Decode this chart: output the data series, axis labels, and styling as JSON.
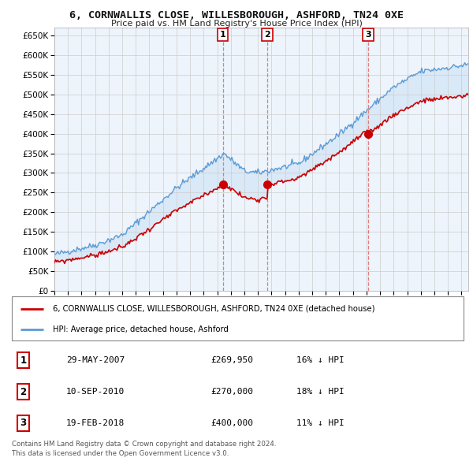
{
  "title": "6, CORNWALLIS CLOSE, WILLESBOROUGH, ASHFORD, TN24 0XE",
  "subtitle": "Price paid vs. HM Land Registry's House Price Index (HPI)",
  "xlim": [
    1995.0,
    2025.5
  ],
  "ylim": [
    0,
    670000
  ],
  "yticks": [
    0,
    50000,
    100000,
    150000,
    200000,
    250000,
    300000,
    350000,
    400000,
    450000,
    500000,
    550000,
    600000,
    650000
  ],
  "ytick_labels": [
    "£0",
    "£50K",
    "£100K",
    "£150K",
    "£200K",
    "£250K",
    "£300K",
    "£350K",
    "£400K",
    "£450K",
    "£500K",
    "£550K",
    "£600K",
    "£650K"
  ],
  "background_color": "#ffffff",
  "plot_background": "#eef4fb",
  "grid_color": "#cccccc",
  "hpi_color": "#5b9bd5",
  "price_color": "#cc0000",
  "sale_vline_color": "#e07070",
  "sales": [
    {
      "label": "1",
      "date_num": 2007.41,
      "price": 269950
    },
    {
      "label": "2",
      "date_num": 2010.69,
      "price": 270000
    },
    {
      "label": "3",
      "date_num": 2018.12,
      "price": 400000
    }
  ],
  "legend_entries": [
    "6, CORNWALLIS CLOSE, WILLESBOROUGH, ASHFORD, TN24 0XE (detached house)",
    "HPI: Average price, detached house, Ashford"
  ],
  "table_data": [
    {
      "num": "1",
      "date": "29-MAY-2007",
      "price": "£269,950",
      "hpi": "16% ↓ HPI"
    },
    {
      "num": "2",
      "date": "10-SEP-2010",
      "price": "£270,000",
      "hpi": "18% ↓ HPI"
    },
    {
      "num": "3",
      "date": "19-FEB-2018",
      "price": "£400,000",
      "hpi": "11% ↓ HPI"
    }
  ],
  "footnote": "Contains HM Land Registry data © Crown copyright and database right 2024.\nThis data is licensed under the Open Government Licence v3.0."
}
